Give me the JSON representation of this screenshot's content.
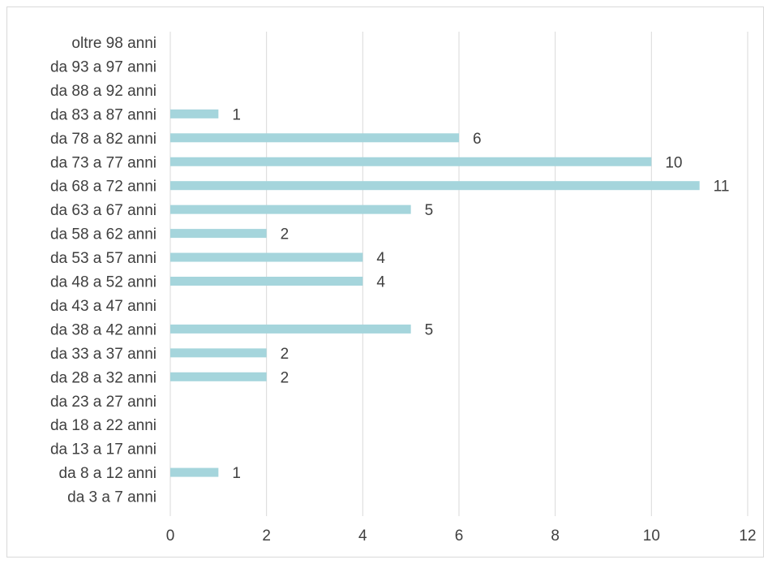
{
  "chart_data": {
    "type": "bar",
    "orientation": "horizontal",
    "categories": [
      "oltre 98 anni",
      "da 93 a 97 anni",
      "da 88 a 92 anni",
      "da 83 a 87 anni",
      "da 78 a 82 anni",
      "da 73 a 77 anni",
      "da 68 a 72 anni",
      "da 63 a 67 anni",
      "da 58 a 62 anni",
      "da 53 a 57 anni",
      "da 48 a 52 anni",
      "da 43 a 47 anni",
      "da 38 a 42 anni",
      "da 33 a 37 anni",
      "da 28 a 32 anni",
      "da 23 a 27 anni",
      "da 18 a 22 anni",
      "da 13 a 17 anni",
      "da 8 a 12 anni",
      "da 3 a 7 anni"
    ],
    "values": [
      null,
      null,
      null,
      1,
      6,
      10,
      11,
      5,
      2,
      4,
      4,
      null,
      5,
      2,
      2,
      null,
      null,
      null,
      1,
      null
    ],
    "data_labels": [
      "",
      "",
      "",
      "1",
      "6",
      "10",
      "11",
      "5",
      "2",
      "4",
      "4",
      "",
      "5",
      "2",
      "2",
      "",
      "",
      "",
      "1",
      ""
    ],
    "x_ticks": [
      "0",
      "2",
      "4",
      "6",
      "8",
      "10",
      "12"
    ],
    "xlim": [
      0,
      12
    ],
    "grid": "vertical",
    "legend": "none",
    "title": "",
    "xlabel": "",
    "ylabel": "",
    "bar_color": "#a5d5dc",
    "grid_color": "#d9d9d9",
    "text_color": "#404040"
  }
}
